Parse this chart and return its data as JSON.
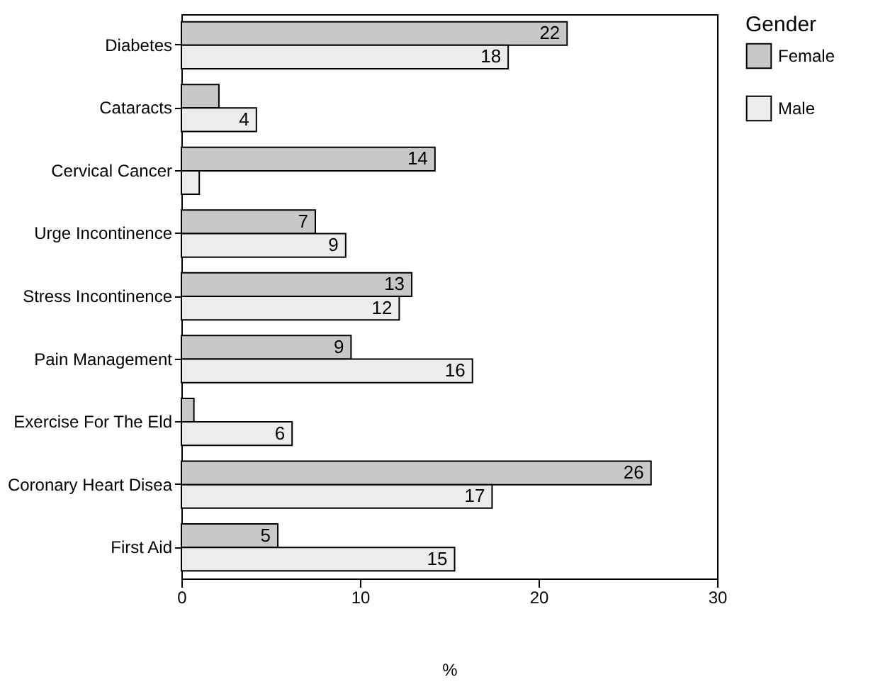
{
  "chart_data": {
    "type": "bar",
    "orientation": "horizontal",
    "xlabel": "%",
    "legend_title": "Gender",
    "legend": "right",
    "xlim": [
      0,
      30
    ],
    "xticks": [
      0,
      10,
      20,
      30
    ],
    "categories": [
      "Diabetes",
      "Cataracts",
      "Cervical Cancer",
      "Urge Incontinence",
      "Stress Incontinence",
      "Pain Management",
      "Exercise For The Eld",
      "Coronary Heart Disea",
      "First Aid"
    ],
    "series": [
      {
        "name": "Female",
        "color": "#c8c8c8",
        "values": [
          21.6,
          2.1,
          14.2,
          7.5,
          12.9,
          9.5,
          0.7,
          26.3,
          5.4
        ],
        "value_labels": [
          "22",
          null,
          "14",
          "7",
          "13",
          "9",
          null,
          "26",
          "5"
        ]
      },
      {
        "name": "Male",
        "color": "#ececec",
        "values": [
          18.3,
          4.2,
          1.0,
          9.2,
          12.2,
          16.3,
          6.2,
          17.4,
          15.3
        ],
        "value_labels": [
          "18",
          "4",
          null,
          "9",
          "12",
          "16",
          "6",
          "17",
          "15"
        ]
      }
    ]
  }
}
